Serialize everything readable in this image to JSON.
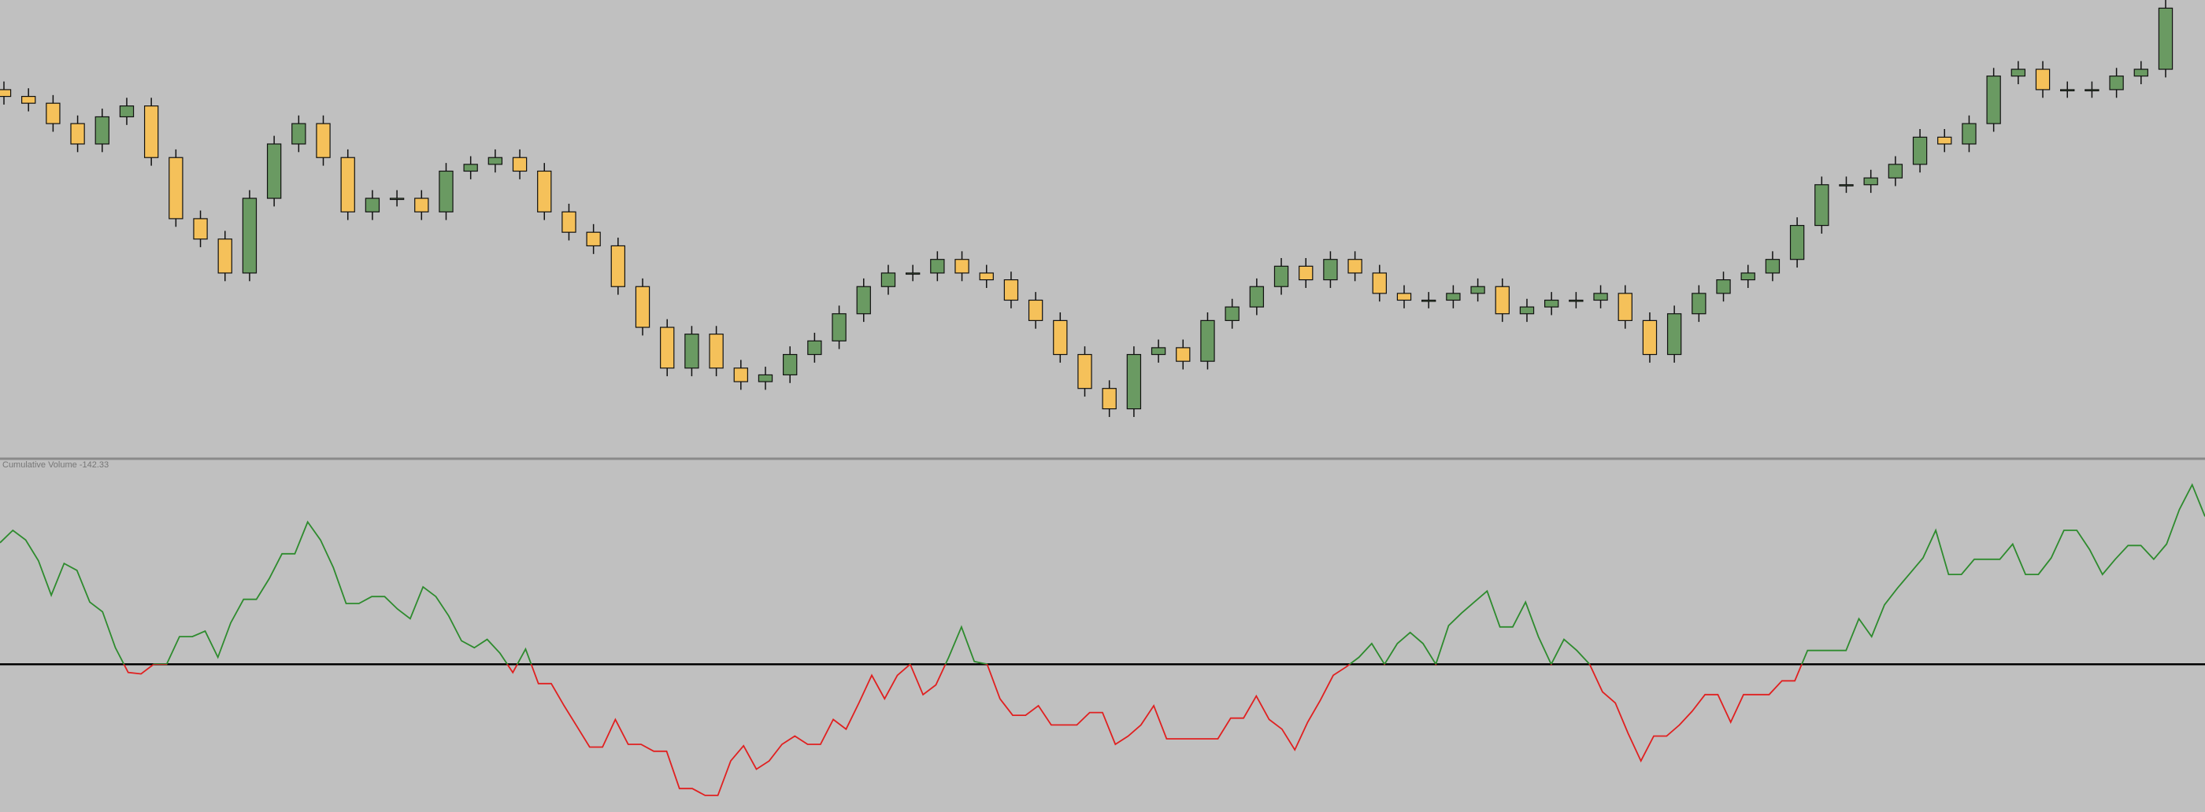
{
  "chart_data": [
    {
      "type": "candlestick",
      "up_color": "#6a9a62",
      "down_color": "#f5c15a",
      "outline_color": "#111111",
      "ylim": [
        0,
        336
      ],
      "open": [
        270,
        265,
        260,
        245,
        230,
        250,
        258,
        220,
        175,
        160,
        135,
        190,
        230,
        245,
        220,
        180,
        190,
        190,
        180,
        210,
        215,
        220,
        210,
        180,
        165,
        155,
        125,
        95,
        65,
        90,
        65,
        55,
        60,
        75,
        85,
        105,
        125,
        135,
        135,
        145,
        135,
        130,
        115,
        100,
        75,
        50,
        35,
        75,
        80,
        70,
        100,
        110,
        125,
        140,
        130,
        145,
        135,
        120,
        115,
        115,
        120,
        125,
        105,
        110,
        115,
        115,
        120,
        100,
        75,
        105,
        120,
        130,
        135,
        145,
        170,
        200,
        200,
        205,
        215,
        235,
        230,
        245,
        280,
        285,
        270,
        270,
        270,
        280,
        285
      ],
      "high": [
        276,
        271,
        266,
        251,
        256,
        264,
        264,
        226,
        181,
        166,
        196,
        236,
        251,
        251,
        226,
        196,
        196,
        196,
        216,
        221,
        226,
        226,
        216,
        186,
        171,
        161,
        131,
        101,
        96,
        96,
        71,
        66,
        81,
        91,
        111,
        131,
        141,
        141,
        151,
        151,
        141,
        136,
        121,
        106,
        81,
        56,
        81,
        86,
        86,
        106,
        116,
        131,
        146,
        146,
        151,
        151,
        141,
        126,
        121,
        126,
        131,
        131,
        116,
        121,
        121,
        126,
        126,
        106,
        111,
        126,
        136,
        141,
        151,
        176,
        206,
        206,
        211,
        221,
        241,
        241,
        251,
        286,
        291,
        291,
        276,
        276,
        286,
        291,
        336
      ],
      "low": [
        259,
        254,
        239,
        224,
        224,
        244,
        214,
        169,
        154,
        129,
        129,
        184,
        224,
        214,
        174,
        174,
        184,
        174,
        174,
        204,
        209,
        204,
        174,
        159,
        149,
        119,
        89,
        59,
        59,
        59,
        49,
        49,
        54,
        69,
        79,
        99,
        119,
        129,
        129,
        129,
        124,
        109,
        94,
        69,
        44,
        29,
        29,
        69,
        64,
        64,
        94,
        104,
        119,
        124,
        124,
        129,
        114,
        109,
        109,
        109,
        114,
        99,
        99,
        104,
        109,
        109,
        94,
        69,
        69,
        99,
        114,
        124,
        129,
        139,
        164,
        194,
        194,
        199,
        209,
        224,
        224,
        239,
        274,
        264,
        264,
        264,
        264,
        274,
        279
      ],
      "close": [
        265,
        260,
        245,
        230,
        250,
        258,
        220,
        175,
        160,
        135,
        190,
        230,
        245,
        220,
        180,
        190,
        190,
        180,
        210,
        215,
        220,
        210,
        180,
        165,
        155,
        125,
        95,
        65,
        90,
        65,
        55,
        60,
        75,
        85,
        105,
        125,
        135,
        135,
        145,
        135,
        130,
        115,
        100,
        75,
        50,
        35,
        75,
        80,
        70,
        100,
        110,
        125,
        140,
        130,
        145,
        135,
        120,
        115,
        115,
        120,
        125,
        105,
        110,
        115,
        115,
        120,
        100,
        75,
        105,
        120,
        130,
        135,
        145,
        170,
        200,
        200,
        205,
        215,
        235,
        230,
        245,
        280,
        285,
        270,
        270,
        270,
        280,
        285,
        330
      ]
    },
    {
      "type": "line",
      "title": "Cumulative Volume -142.33",
      "up_color": "#2e8b2e",
      "down_color": "#e02020",
      "zero_line_color": "#000000",
      "ylim": [
        -107,
        142
      ],
      "values": [
        88,
        97,
        90,
        75,
        50,
        73,
        68,
        45,
        38,
        12,
        -6,
        -7,
        0,
        0,
        20,
        20,
        24,
        5,
        30,
        47,
        47,
        62,
        80,
        80,
        103,
        90,
        70,
        44,
        44,
        49,
        49,
        40,
        33,
        56,
        49,
        35,
        17,
        12,
        18,
        8,
        -6,
        11,
        -14,
        -14,
        -30,
        -45,
        -60,
        -60,
        -40,
        -58,
        -58,
        -63,
        -63,
        -90,
        -90,
        -95,
        -95,
        -70,
        -59,
        -76,
        -70,
        -58,
        -52,
        -58,
        -58,
        -40,
        -47,
        -28,
        -8,
        -25,
        -8,
        0,
        -22,
        -15,
        5,
        27,
        2,
        0,
        -25,
        -37,
        -37,
        -30,
        -44,
        -44,
        -44,
        -35,
        -35,
        -58,
        -52,
        -44,
        -30,
        -54,
        -54,
        -54,
        -54,
        -54,
        -39,
        -39,
        -23,
        -40,
        -47,
        -62,
        -42,
        -26,
        -8,
        -2,
        5,
        15,
        0,
        15,
        23,
        15,
        0,
        28,
        37,
        45,
        53,
        27,
        27,
        45,
        20,
        0,
        18,
        10,
        0,
        -20,
        -28,
        -50,
        -70,
        -52,
        -52,
        -44,
        -34,
        -22,
        -22,
        -42,
        -22,
        -22,
        -22,
        -12,
        -12,
        10,
        10,
        10,
        10,
        33,
        20,
        43,
        55,
        66,
        77,
        97,
        65,
        65,
        76,
        76,
        76,
        87,
        65,
        65,
        77,
        97,
        97,
        83,
        65,
        76,
        86,
        86,
        76,
        87,
        112,
        130,
        107
      ]
    }
  ]
}
